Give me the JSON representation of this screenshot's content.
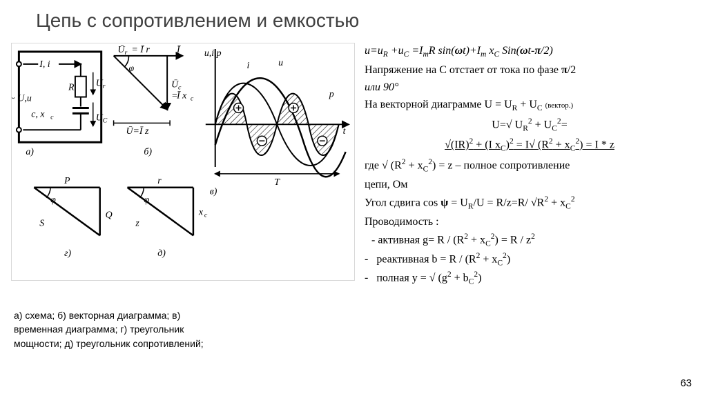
{
  "title": "Цепь с сопротивлением и емкостью",
  "caption": {
    "line1": "а) схема;   б) векторная диаграмма;   в)",
    "line2": "временная диаграмма;   г) треугольник",
    "line3": "мощности;   д) треугольник  сопротивлений;"
  },
  "formulas": {
    "p1": "u=u<sub>R</sub> +u<sub>C</sub> =I<sub>m</sub>R sin(<b>ω</b>t)+I<sub>m</sub> x<sub>C</sub> Sin(<b>ω</b>t-<b>π</b>/2)",
    "p2": "Напряжение на С отстает от тока по фазе <b>π</b>/2",
    "p3": "или 90°",
    "p4_pre": "На векторной диаграмме U = U<sub>R</sub> + U<sub>C</sub>  ",
    "p4_post": "(вектор.)",
    "p5": "U=√ U<sub>R</sub><sup>2</sup> + U<sub>C</sub><sup>2</sup>=",
    "p6": "√(IR)<sup>2</sup> + (I x<sub>C</sub>)<sup>2</sup> = I√ (R<sup>2</sup> + x<sub>C</sub><sup>2</sup>) = I * z",
    "p7": "где √ (R<sup>2</sup> + x<sub>C</sub><sup>2</sup>) = z – полное сопротивление",
    "p8": "цепи, Ом",
    "p9": "Угол сдвига cos <b>ψ</b> = U<sub>R</sub>/U = R/z=R/ √R<sup>2</sup> + x<sub>C</sub><sup>2</sup>",
    "p10": "Проводимость :",
    "li1": " - активная g= R / (R<sup>2</sup> + x<sub>C</sub><sup>2</sup>) = R / z<sup>2</sup>",
    "li2": "реактивная b = R / (R<sup>2</sup> + x<sub>C</sub><sup>2</sup>)",
    "li3": "полная y = √ (g<sup>2</sup> + b<sub>C</sub><sup>2</sup>)"
  },
  "page_number": "63",
  "diagram": {
    "stroke": "#000000",
    "stroke_w": 2,
    "hatch_spacing": 5,
    "labels": {
      "a": "а)",
      "b": "б)",
      "v": "в)",
      "g": "г)",
      "d": "д)",
      "Ii": "I, i",
      "Uu": "~U,u",
      "Ur_box": "U<sub>r</sub>",
      "Uc_box": "U<sub>C</sub>",
      "R_box": "R",
      "c_xc": "c, x<sub>c</sub>",
      "Ur_vec": "Ū<sub>r</sub> = Ī r",
      "I_vec": "Ī",
      "phi": "φ",
      "Uc_vec": "Ū<sub>c</sub>=Ī x<sub>c</sub>",
      "U_Iz": "Ū=Ī z",
      "uip": "u,i,p",
      "i_curve": "i",
      "u_curve": "u",
      "p_curve": "p",
      "t_axis": "t",
      "T_period": "T",
      "P_tri": "P",
      "S_tri": "S",
      "Q_tri": "Q",
      "r_tri": "r",
      "z_tri": "z",
      "xc_tri": "x<sub>c</sub>"
    }
  }
}
